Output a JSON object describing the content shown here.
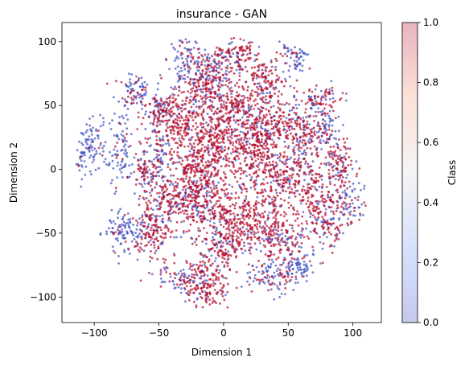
{
  "chart_data": {
    "type": "scatter",
    "title": "insurance - GAN",
    "xlabel": "Dimension 1",
    "ylabel": "Dimension 2",
    "xlim": [
      -125,
      122
    ],
    "ylim": [
      -120,
      115
    ],
    "xticks": [
      -100,
      -50,
      0,
      50,
      100
    ],
    "yticks": [
      -100,
      -50,
      0,
      50,
      100
    ],
    "xtick_labels": [
      "−100",
      "−50",
      "0",
      "50",
      "100"
    ],
    "ytick_labels": [
      "−100",
      "−50",
      "0",
      "50",
      "100"
    ],
    "grid": false,
    "colormap": "coolwarm",
    "point_alpha": 0.7,
    "colorbar": {
      "label": "Class",
      "range": [
        0.0,
        1.0
      ],
      "ticks": [
        0.0,
        0.2,
        0.4,
        0.6,
        0.8,
        1.0
      ],
      "tick_labels": [
        "0.0",
        "0.2",
        "0.4",
        "0.6",
        "0.8",
        "1.0"
      ],
      "alpha": 0.3
    },
    "colors": {
      "class_0": "#3b4cc0",
      "class_1": "#b40426"
    },
    "clusters": [
      {
        "x": -103,
        "y": 18,
        "sx": 8,
        "sy": 13,
        "n": 120,
        "p1": 0.08
      },
      {
        "x": -78,
        "y": 15,
        "sx": 5,
        "sy": 14,
        "n": 80,
        "p1": 0.12
      },
      {
        "x": -78,
        "y": -50,
        "sx": 8,
        "sy": 9,
        "n": 110,
        "p1": 0.15
      },
      {
        "x": -70,
        "y": 60,
        "sx": 7,
        "sy": 7,
        "n": 80,
        "p1": 0.25
      },
      {
        "x": -62,
        "y": 0,
        "sx": 6,
        "sy": 10,
        "n": 80,
        "p1": 0.6
      },
      {
        "x": -55,
        "y": -50,
        "sx": 8,
        "sy": 11,
        "n": 130,
        "p1": 0.65
      },
      {
        "x": -50,
        "y": 10,
        "sx": 4,
        "sy": 12,
        "n": 60,
        "p1": 0.2
      },
      {
        "x": -45,
        "y": -25,
        "sx": 10,
        "sy": 14,
        "n": 170,
        "p1": 0.75
      },
      {
        "x": -48,
        "y": 45,
        "sx": 7,
        "sy": 7,
        "n": 90,
        "p1": 0.5
      },
      {
        "x": -35,
        "y": 40,
        "sx": 12,
        "sy": 14,
        "n": 220,
        "p1": 0.85
      },
      {
        "x": -30,
        "y": -88,
        "sx": 10,
        "sy": 6,
        "n": 90,
        "p1": 0.45
      },
      {
        "x": -30,
        "y": 88,
        "sx": 6,
        "sy": 8,
        "n": 70,
        "p1": 0.2
      },
      {
        "x": -20,
        "y": -5,
        "sx": 12,
        "sy": 14,
        "n": 260,
        "p1": 0.9
      },
      {
        "x": -15,
        "y": -30,
        "sx": 12,
        "sy": 10,
        "n": 200,
        "p1": 0.65
      },
      {
        "x": -15,
        "y": 65,
        "sx": 10,
        "sy": 8,
        "n": 160,
        "p1": 0.7
      },
      {
        "x": -12,
        "y": -90,
        "sx": 9,
        "sy": 11,
        "n": 170,
        "p1": 0.85
      },
      {
        "x": -10,
        "y": 20,
        "sx": 12,
        "sy": 12,
        "n": 240,
        "p1": 0.9
      },
      {
        "x": -8,
        "y": 82,
        "sx": 9,
        "sy": 7,
        "n": 110,
        "p1": 0.5
      },
      {
        "x": 0,
        "y": -60,
        "sx": 10,
        "sy": 8,
        "n": 140,
        "p1": 0.7
      },
      {
        "x": 5,
        "y": 45,
        "sx": 12,
        "sy": 10,
        "n": 220,
        "p1": 0.8
      },
      {
        "x": 10,
        "y": 90,
        "sx": 8,
        "sy": 5,
        "n": 90,
        "p1": 0.75
      },
      {
        "x": 20,
        "y": -40,
        "sx": 14,
        "sy": 14,
        "n": 300,
        "p1": 0.9
      },
      {
        "x": 20,
        "y": 10,
        "sx": 10,
        "sy": 12,
        "n": 200,
        "p1": 0.85
      },
      {
        "x": 30,
        "y": 70,
        "sx": 10,
        "sy": 9,
        "n": 150,
        "p1": 0.8
      },
      {
        "x": 35,
        "y": 35,
        "sx": 12,
        "sy": 12,
        "n": 240,
        "p1": 0.8
      },
      {
        "x": 38,
        "y": -85,
        "sx": 9,
        "sy": 6,
        "n": 100,
        "p1": 0.35
      },
      {
        "x": 45,
        "y": -5,
        "sx": 12,
        "sy": 12,
        "n": 210,
        "p1": 0.75
      },
      {
        "x": 45,
        "y": -55,
        "sx": 10,
        "sy": 8,
        "n": 130,
        "p1": 0.65
      },
      {
        "x": 55,
        "y": 90,
        "sx": 5,
        "sy": 8,
        "n": 70,
        "p1": 0.15
      },
      {
        "x": 60,
        "y": 30,
        "sx": 8,
        "sy": 12,
        "n": 150,
        "p1": 0.65
      },
      {
        "x": 60,
        "y": -75,
        "sx": 7,
        "sy": 5,
        "n": 70,
        "p1": 0.15
      },
      {
        "x": 70,
        "y": -20,
        "sx": 9,
        "sy": 14,
        "n": 170,
        "p1": 0.8
      },
      {
        "x": 75,
        "y": 55,
        "sx": 8,
        "sy": 6,
        "n": 90,
        "p1": 0.6
      },
      {
        "x": 80,
        "y": -45,
        "sx": 7,
        "sy": 9,
        "n": 90,
        "p1": 0.5
      },
      {
        "x": 90,
        "y": 0,
        "sx": 7,
        "sy": 14,
        "n": 130,
        "p1": 0.7
      },
      {
        "x": 100,
        "y": -25,
        "sx": 5,
        "sy": 8,
        "n": 60,
        "p1": 0.3
      },
      {
        "x": 80,
        "y": 30,
        "sx": 5,
        "sy": 8,
        "n": 60,
        "p1": 0.3
      }
    ]
  }
}
